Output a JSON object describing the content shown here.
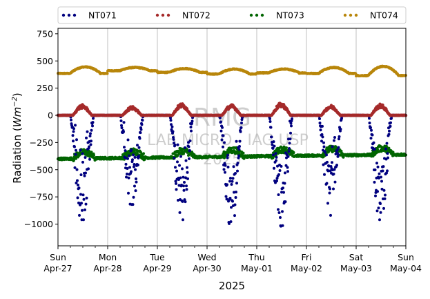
{
  "chart_data": {
    "type": "scatter",
    "title": "",
    "xlabel": "2025",
    "ylabel_main": "Radiation (",
    "ylabel_unit": "Wm",
    "ylabel_exp": "−2",
    "ylabel_close": ")",
    "ylim": [
      -1200,
      800
    ],
    "yticks": [
      -1000,
      -750,
      -500,
      -250,
      0,
      250,
      500,
      750
    ],
    "ytick_labels": [
      "−1000",
      "−750",
      "−500",
      "−250",
      "0",
      "250",
      "500",
      "750"
    ],
    "xlim_days": [
      0,
      7
    ],
    "xticks": [
      {
        "day": "Sun",
        "date": "Apr-27"
      },
      {
        "day": "Mon",
        "date": "Apr-28"
      },
      {
        "day": "Tue",
        "date": "Apr-29"
      },
      {
        "day": "Wed",
        "date": "Apr-30"
      },
      {
        "day": "Thu",
        "date": "May-01"
      },
      {
        "day": "Fri",
        "date": "May-02"
      },
      {
        "day": "Sat",
        "date": "May-03"
      },
      {
        "day": "Sun",
        "date": "May-04"
      }
    ],
    "grid": "vertical",
    "legend_position": "top",
    "series": [
      {
        "name": "NT071",
        "color": "#00007f",
        "daily_min_W_m2": [
          -960,
          -820,
          -960,
          -1020,
          -1020,
          -920,
          -960
        ],
        "night_W_m2": 0
      },
      {
        "name": "NT072",
        "color": "#a52a2a",
        "daily_max_W_m2": [
          90,
          75,
          100,
          90,
          105,
          85,
          95
        ],
        "night_W_m2": 0
      },
      {
        "name": "NT073",
        "color": "#006400",
        "night_range_W_m2": [
          -420,
          -340
        ],
        "day_range_W_m2": [
          -390,
          -300
        ]
      },
      {
        "name": "NT074",
        "color": "#b8860b",
        "daily_max_W_m2": [
          445,
          440,
          430,
          425,
          425,
          440,
          450
        ],
        "daily_min_W_m2": [
          385,
          410,
          395,
          380,
          390,
          385,
          365
        ]
      }
    ]
  },
  "watermark": {
    "line1": "RMG",
    "line2": "LAB MICRO - IAG USP",
    "line3": "2025"
  }
}
